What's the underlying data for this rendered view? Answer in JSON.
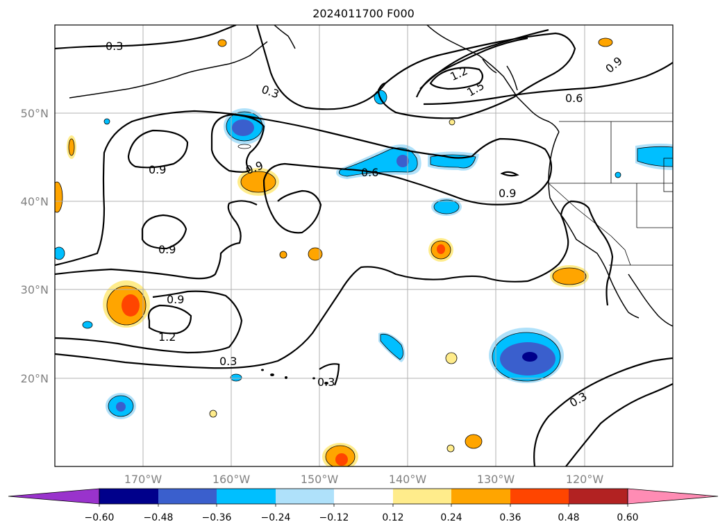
{
  "title": "2024011700 F000",
  "map": {
    "lat_labels": [
      "50°N",
      "40°N",
      "30°N",
      "20°N"
    ],
    "lon_labels": [
      "170°W",
      "160°W",
      "150°W",
      "140°W",
      "130°W",
      "120°W"
    ],
    "contour_labels": [
      "0.3",
      "0.3",
      "0.3",
      "0.3",
      "0.3",
      "0.6",
      "0.6",
      "0.9",
      "0.9",
      "0.9",
      "0.9",
      "0.9",
      "0.9",
      "1.2",
      "1.2",
      "1.5"
    ]
  },
  "colorbar": {
    "ticks": [
      "−0.60",
      "−0.48",
      "−0.36",
      "−0.24",
      "−0.12",
      "0.12",
      "0.24",
      "0.36",
      "0.48",
      "0.60"
    ],
    "colors": [
      "#9933cc",
      "#00008b",
      "#3a5fcd",
      "#00bfff",
      "#afe1fa",
      "#ffffff",
      "#ffec8b",
      "#ffa500",
      "#ff4500",
      "#b22222",
      "#ff8cb4"
    ]
  }
}
